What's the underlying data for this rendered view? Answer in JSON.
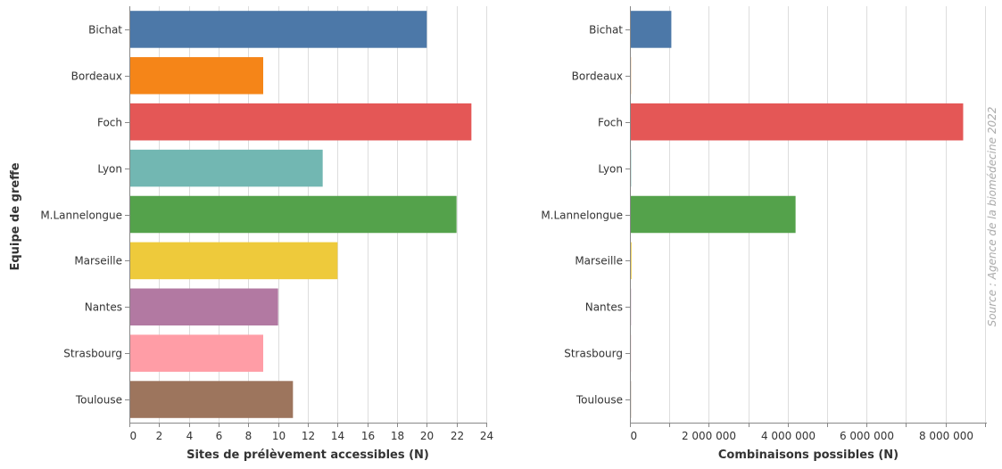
{
  "y_axis_title": "Equipe de greffe",
  "source": "Source : Agence de la biomédecine 2022",
  "colors": [
    "#4c78a8",
    "#f58518",
    "#e45756",
    "#72b7b2",
    "#54a24b",
    "#eeca3b",
    "#b279a2",
    "#ff9da6",
    "#9d755d"
  ],
  "chart_data": [
    {
      "type": "bar",
      "orientation": "horizontal",
      "categories": [
        "Bichat",
        "Bordeaux",
        "Foch",
        "Lyon",
        "M.Lannelongue",
        "Marseille",
        "Nantes",
        "Strasbourg",
        "Toulouse"
      ],
      "values": [
        20,
        9,
        23,
        13,
        22,
        14,
        10,
        9,
        11
      ],
      "xlabel": "Sites de prélèvement accessibles (N)",
      "ylabel": "Equipe de greffe",
      "xlim": [
        0,
        24
      ],
      "xticks": [
        0,
        2,
        4,
        6,
        8,
        10,
        12,
        14,
        16,
        18,
        20,
        22,
        24
      ],
      "xtick_labels": [
        "0",
        "2",
        "4",
        "6",
        "8",
        "10",
        "12",
        "14",
        "16",
        "18",
        "20",
        "22",
        "24"
      ],
      "grid": true
    },
    {
      "type": "bar",
      "orientation": "horizontal",
      "categories": [
        "Bichat",
        "Bordeaux",
        "Foch",
        "Lyon",
        "M.Lannelongue",
        "Marseille",
        "Nantes",
        "Strasbourg",
        "Toulouse"
      ],
      "values": [
        1050000,
        20000,
        8450000,
        30000,
        4200000,
        40000,
        20000,
        10000,
        15000
      ],
      "xlabel": "Combinaisons possibles (N)",
      "xlim": [
        0,
        9050000
      ],
      "xticks": [
        0,
        1000000,
        2000000,
        3000000,
        4000000,
        5000000,
        6000000,
        7000000,
        8000000,
        9000000
      ],
      "xtick_labels": [
        "0",
        "",
        "2 000 000",
        "",
        "4 000 000",
        "",
        "6 000 000",
        "",
        "8 000 000",
        ""
      ],
      "grid": true
    }
  ]
}
